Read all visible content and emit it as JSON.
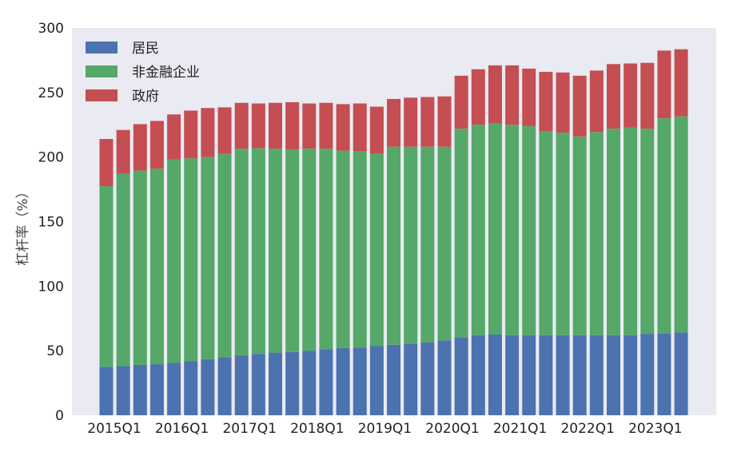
{
  "chart_data": {
    "type": "bar",
    "stacked": true,
    "title": "",
    "xlabel": "",
    "ylabel": "杠杆率（%）",
    "ylim": [
      0,
      300
    ],
    "yticks": [
      0,
      50,
      100,
      150,
      200,
      250,
      300
    ],
    "grid": false,
    "legend_position": "top-left",
    "categories": [
      "2015Q1",
      "2015Q2",
      "2015Q3",
      "2015Q4",
      "2016Q1",
      "2016Q2",
      "2016Q3",
      "2016Q4",
      "2017Q1",
      "2017Q2",
      "2017Q3",
      "2017Q4",
      "2018Q1",
      "2018Q2",
      "2018Q3",
      "2018Q4",
      "2019Q1",
      "2019Q2",
      "2019Q3",
      "2019Q4",
      "2020Q1",
      "2020Q2",
      "2020Q3",
      "2020Q4",
      "2021Q1",
      "2021Q2",
      "2021Q3",
      "2021Q4",
      "2022Q1",
      "2022Q2",
      "2022Q3",
      "2022Q4",
      "2023Q1",
      "2023Q2",
      "2023Q3"
    ],
    "xtick_labels": [
      "2015Q1",
      "2016Q1",
      "2017Q1",
      "2018Q1",
      "2019Q1",
      "2020Q1",
      "2021Q1",
      "2022Q1",
      "2023Q1"
    ],
    "series": [
      {
        "name": "居民",
        "color": "#4c72b0",
        "values": [
          37.5,
          38,
          39,
          39.5,
          40.5,
          42,
          43.5,
          45,
          46.5,
          47.5,
          48.5,
          49,
          50,
          51,
          52,
          52.5,
          53.5,
          54.5,
          55.5,
          56.5,
          58,
          60,
          62,
          62.5,
          62,
          62,
          62,
          62,
          62,
          62,
          62,
          62,
          63,
          63.5,
          64
        ]
      },
      {
        "name": "非金融企业",
        "color": "#55a868",
        "values": [
          140,
          149,
          150.5,
          151.5,
          157.5,
          157,
          156.5,
          157.5,
          160,
          159.5,
          158,
          157,
          156.5,
          155.5,
          153,
          152,
          149,
          153.5,
          152.5,
          151.5,
          150,
          162,
          163,
          163.5,
          163,
          162,
          158,
          157,
          154,
          157.5,
          160,
          161,
          159,
          166.5,
          167.5
        ]
      },
      {
        "name": "政府",
        "color": "#c44e52",
        "values": [
          36.5,
          34,
          36,
          37,
          35,
          37,
          38,
          36,
          35.5,
          34.5,
          35.5,
          36.5,
          35,
          35.5,
          36,
          37,
          36.5,
          37,
          38,
          38.5,
          39,
          41,
          43,
          45,
          46,
          44.5,
          46,
          46.5,
          47,
          47.5,
          50,
          49.5,
          51,
          52.5,
          52
        ]
      }
    ]
  }
}
